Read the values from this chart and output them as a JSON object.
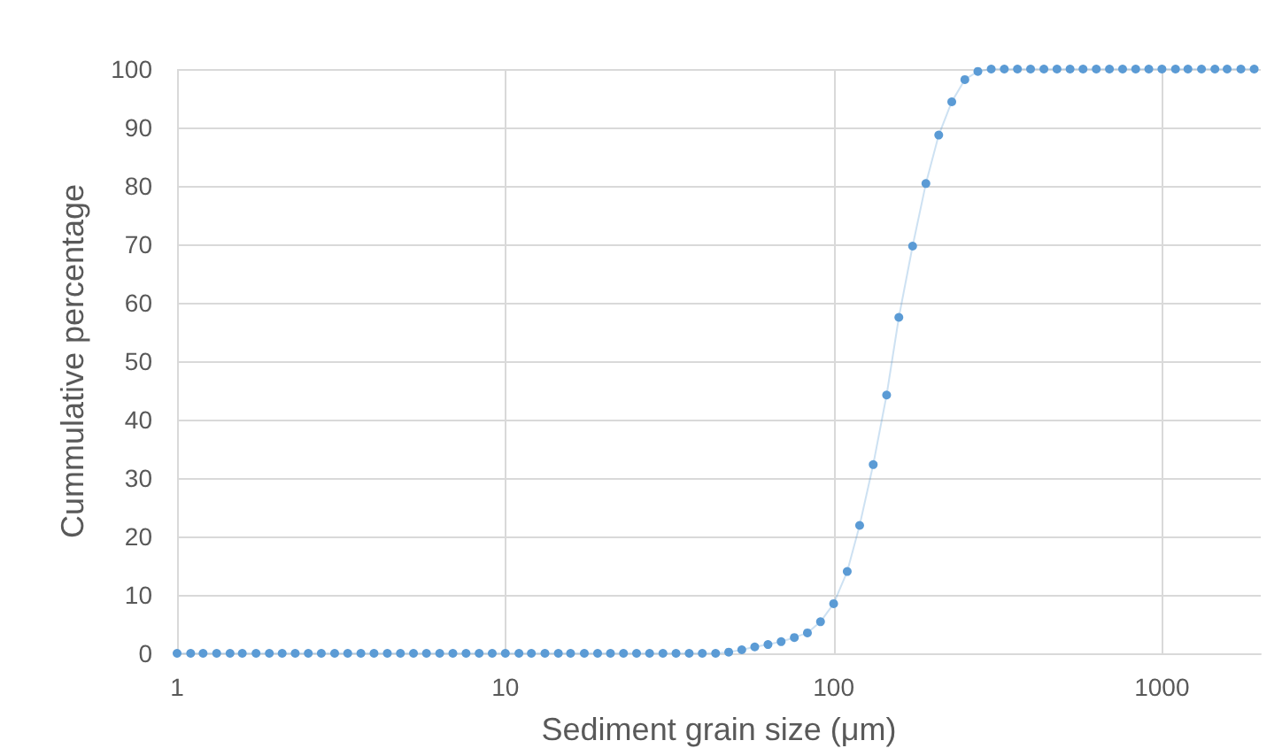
{
  "chart_data": {
    "type": "line",
    "xlabel": "Sediment grain size (μm)",
    "ylabel": "Cummulative percentage",
    "log": "x",
    "grid": true,
    "marker": "circle",
    "line_style": "solid",
    "xlim": [
      1,
      2000
    ],
    "xticks": [
      1,
      10,
      100,
      1000
    ],
    "ylim": [
      0,
      100
    ],
    "yticks": [
      0,
      10,
      20,
      30,
      40,
      50,
      60,
      70,
      80,
      90,
      100
    ],
    "x": [
      1,
      1.1,
      1.2,
      1.32,
      1.45,
      1.58,
      1.74,
      1.91,
      2.09,
      2.29,
      2.51,
      2.75,
      3.02,
      3.31,
      3.63,
      3.98,
      4.37,
      4.79,
      5.25,
      5.75,
      6.31,
      6.92,
      7.59,
      8.32,
      9.12,
      10,
      11,
      12,
      13.2,
      14.5,
      15.8,
      17.4,
      19.1,
      20.9,
      22.9,
      25.1,
      27.5,
      30.2,
      33.1,
      36.3,
      39.8,
      43.7,
      47.9,
      52.5,
      57.5,
      63.1,
      69.2,
      75.9,
      83.2,
      91.2,
      100,
      110,
      120,
      132,
      145,
      158,
      174,
      191,
      209,
      229,
      251,
      275,
      302,
      331,
      363,
      398,
      437,
      479,
      525,
      575,
      631,
      692,
      759,
      832,
      912,
      1000,
      1100,
      1200,
      1320,
      1450,
      1580,
      1740,
      1910
    ],
    "series": [
      {
        "color": "#5b9bd5",
        "values": [
          0,
          0,
          0,
          0,
          0,
          0,
          0,
          0,
          0,
          0,
          0,
          0,
          0,
          0,
          0,
          0,
          0,
          0,
          0,
          0,
          0,
          0,
          0,
          0,
          0,
          0,
          0,
          0,
          0,
          0,
          0,
          0,
          0,
          0,
          0,
          0,
          0,
          0,
          0,
          0,
          0,
          0,
          0.2,
          0.6,
          1.1,
          1.5,
          2,
          2.7,
          3.5,
          5.4,
          8.5,
          14,
          21.9,
          32.3,
          44.2,
          57.5,
          69.7,
          80.4,
          88.7,
          94.4,
          98.2,
          99.6,
          100,
          100,
          100,
          100,
          100,
          100,
          100,
          100,
          100,
          100,
          100,
          100,
          100,
          100,
          100,
          100,
          100,
          100,
          100,
          100,
          100
        ]
      }
    ]
  }
}
